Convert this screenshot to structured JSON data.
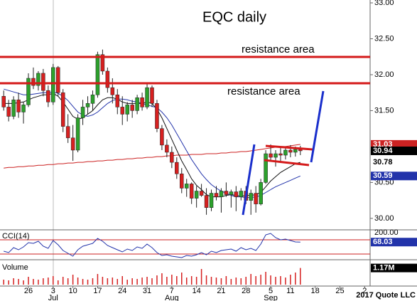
{
  "chart_data": {
    "type": "candlestick",
    "title": "EQC daily",
    "annotations": [
      "resistance area",
      "resistance area"
    ],
    "copyright": "2017 Quote LLC",
    "categories": [
      null,
      null,
      null,
      null,
      null,
      "26",
      null,
      null,
      null,
      null,
      "3",
      null,
      null,
      null,
      "10",
      null,
      null,
      null,
      null,
      "17",
      null,
      null,
      null,
      null,
      "24",
      null,
      null,
      null,
      null,
      "31",
      null,
      null,
      null,
      null,
      "7",
      null,
      null,
      null,
      null,
      "14",
      null,
      null,
      null,
      null,
      "21",
      null,
      null,
      null,
      null,
      "28",
      null,
      null,
      null,
      null,
      "5",
      null,
      null,
      null,
      "11",
      null,
      null,
      null,
      null,
      "18",
      null,
      null,
      null,
      null,
      "25",
      null,
      null,
      null,
      null,
      "2"
    ],
    "months": [
      null,
      null,
      null,
      null,
      null,
      null,
      null,
      null,
      null,
      null,
      "Jul",
      null,
      null,
      null,
      null,
      null,
      null,
      null,
      null,
      null,
      null,
      null,
      null,
      null,
      null,
      null,
      null,
      null,
      null,
      null,
      null,
      null,
      null,
      null,
      "Aug",
      null,
      null,
      null,
      null,
      null,
      null,
      null,
      null,
      null,
      null,
      null,
      null,
      null,
      null,
      null,
      null,
      null,
      null,
      null,
      "Sep",
      null,
      null,
      null,
      null,
      null,
      null,
      null,
      null,
      null,
      null,
      null,
      null,
      null,
      null,
      null,
      null,
      null,
      null,
      null
    ],
    "up_color": "#2ca02c",
    "down_color": "#d62020",
    "open": [
      31.7,
      31.55,
      31.42,
      31.65,
      31.48,
      31.58,
      31.95,
      31.85,
      32.02,
      31.78,
      31.62,
      32.1,
      31.75,
      31.28,
      31.12,
      30.95,
      31.4,
      31.55,
      31.6,
      31.72,
      32.28,
      32.05,
      31.82,
      31.72,
      31.55,
      31.45,
      31.58,
      31.5,
      31.68,
      31.55,
      31.82,
      31.6,
      31.25,
      31.02,
      30.92,
      30.78,
      30.62,
      30.42,
      30.48,
      30.28,
      30.38,
      30.32,
      30.15,
      30.35,
      30.3,
      30.38,
      30.33,
      30.37,
      30.3,
      30.38,
      30.25,
      30.35,
      30.2,
      30.5,
      30.9,
      30.85,
      30.9,
      30.88,
      30.95,
      30.92,
      30.96,
      null,
      null,
      null,
      null,
      null,
      null,
      null,
      null,
      null,
      null,
      null,
      null,
      null
    ],
    "high": [
      31.78,
      31.65,
      31.7,
      31.75,
      31.62,
      32.02,
      32.1,
      32.05,
      32.08,
      31.85,
      32.15,
      32.12,
      31.8,
      31.45,
      31.3,
      31.45,
      31.65,
      31.7,
      31.78,
      32.32,
      32.35,
      32.1,
      31.95,
      31.8,
      31.7,
      31.62,
      31.65,
      31.72,
      31.75,
      31.88,
      31.85,
      31.65,
      31.3,
      31.1,
      31.0,
      30.85,
      30.7,
      30.55,
      30.5,
      30.45,
      30.48,
      30.42,
      30.4,
      30.45,
      30.42,
      30.5,
      30.4,
      30.45,
      30.42,
      30.45,
      30.4,
      30.45,
      30.55,
      30.95,
      31.03,
      30.95,
      30.98,
      31.0,
      31.02,
      31.0,
      31.01,
      null,
      null,
      null,
      null,
      null,
      null,
      null,
      null,
      null,
      null,
      null,
      null,
      null
    ],
    "low": [
      31.5,
      31.35,
      31.38,
      31.4,
      31.32,
      31.55,
      31.8,
      31.78,
      31.7,
      31.55,
      31.58,
      31.7,
      31.2,
      31.05,
      30.8,
      30.92,
      31.3,
      31.45,
      31.5,
      31.68,
      32.0,
      31.75,
      31.6,
      31.45,
      31.3,
      31.35,
      31.4,
      31.45,
      31.5,
      31.52,
      31.55,
      31.2,
      30.95,
      30.85,
      30.7,
      30.55,
      30.35,
      30.3,
      30.2,
      30.15,
      30.3,
      30.05,
      30.1,
      30.25,
      30.08,
      30.3,
      30.15,
      30.1,
      30.25,
      30.2,
      30.05,
      30.08,
      30.18,
      30.48,
      30.8,
      30.72,
      30.8,
      30.82,
      30.85,
      30.86,
      30.88,
      null,
      null,
      null,
      null,
      null,
      null,
      null,
      null,
      null,
      null,
      null,
      null,
      null
    ],
    "close": [
      31.55,
      31.42,
      31.65,
      31.48,
      31.58,
      31.95,
      31.85,
      32.02,
      31.78,
      31.62,
      32.1,
      31.75,
      31.28,
      31.12,
      30.95,
      31.4,
      31.55,
      31.6,
      31.72,
      32.28,
      32.05,
      31.82,
      31.72,
      31.55,
      31.45,
      31.58,
      31.5,
      31.68,
      31.55,
      31.82,
      31.6,
      31.25,
      31.02,
      30.92,
      30.78,
      30.62,
      30.42,
      30.48,
      30.28,
      30.38,
      30.32,
      30.15,
      30.35,
      30.3,
      30.38,
      30.33,
      30.37,
      30.3,
      30.38,
      30.25,
      30.35,
      30.2,
      30.5,
      30.9,
      30.85,
      30.9,
      30.88,
      30.95,
      30.92,
      30.96,
      30.94,
      null,
      null,
      null,
      null,
      null,
      null,
      null,
      null,
      null,
      null,
      null,
      null,
      null
    ],
    "overlays": [
      {
        "color": "#cc2222",
        "values": [
          30.7,
          30.71,
          30.71,
          30.72,
          30.72,
          30.73,
          30.73,
          30.74,
          30.74,
          30.75,
          30.75,
          30.76,
          30.76,
          30.77,
          30.77,
          30.78,
          30.78,
          30.79,
          30.79,
          30.8,
          30.8,
          30.81,
          30.81,
          30.82,
          30.82,
          30.83,
          30.83,
          30.84,
          30.84,
          30.85,
          30.85,
          30.86,
          30.86,
          30.87,
          30.87,
          30.88,
          30.88,
          30.88,
          30.89,
          30.89,
          30.89,
          30.9,
          30.9,
          30.9,
          30.91,
          30.91,
          30.92,
          30.92,
          30.93,
          30.93,
          30.94,
          30.95,
          30.96,
          30.97,
          30.98,
          30.99,
          31.0,
          31.0,
          31.01,
          31.02,
          31.03,
          null,
          null,
          null,
          null,
          null,
          null,
          null,
          null,
          null,
          null,
          null,
          null,
          null
        ]
      },
      {
        "color": "#111111",
        "values": [
          31.6,
          31.6,
          31.6,
          31.61,
          31.62,
          31.65,
          31.68,
          31.7,
          31.72,
          31.72,
          31.74,
          31.7,
          31.62,
          31.52,
          31.42,
          31.38,
          31.4,
          31.45,
          31.5,
          31.58,
          31.65,
          31.68,
          31.68,
          31.66,
          31.62,
          31.6,
          31.6,
          31.6,
          31.6,
          31.62,
          31.6,
          31.52,
          31.4,
          31.25,
          31.1,
          30.95,
          30.8,
          30.68,
          30.55,
          30.46,
          30.4,
          30.33,
          30.3,
          30.3,
          30.3,
          30.32,
          30.33,
          30.32,
          30.31,
          30.32,
          30.32,
          30.33,
          30.36,
          30.44,
          30.52,
          30.58,
          30.64,
          30.68,
          30.72,
          30.76,
          30.78,
          null,
          null,
          null,
          null,
          null,
          null,
          null,
          null,
          null,
          null,
          null,
          null,
          null
        ]
      },
      {
        "color": "#2233aa",
        "values": [
          31.8,
          31.78,
          31.76,
          31.74,
          31.72,
          31.72,
          31.73,
          31.74,
          31.75,
          31.75,
          31.76,
          31.74,
          31.7,
          31.64,
          31.56,
          31.48,
          31.44,
          31.42,
          31.44,
          31.48,
          31.54,
          31.6,
          31.64,
          31.66,
          31.66,
          31.65,
          31.63,
          31.62,
          31.6,
          31.58,
          31.56,
          31.54,
          31.48,
          31.4,
          31.3,
          31.18,
          31.06,
          30.94,
          30.82,
          30.72,
          30.62,
          30.54,
          30.47,
          30.42,
          30.38,
          30.35,
          30.32,
          30.3,
          30.3,
          30.29,
          30.29,
          30.3,
          30.32,
          30.36,
          30.4,
          30.44,
          30.47,
          30.5,
          30.53,
          30.56,
          30.59,
          null,
          null,
          null,
          null,
          null,
          null,
          null,
          null,
          null,
          null,
          null,
          null,
          null
        ]
      }
    ],
    "ylim": [
      29.85,
      33.04
    ],
    "yticks": [
      {
        "value": 33,
        "label": "33.00"
      },
      {
        "value": 32.5,
        "label": "32.50"
      },
      {
        "value": 32,
        "label": "32.00"
      },
      {
        "value": 31.5,
        "label": "31.50"
      },
      {
        "value": 30.5,
        "label": "30.50"
      },
      {
        "value": 30,
        "label": "30.00"
      }
    ],
    "cci": {
      "label": "CCI(14)",
      "color": "#2233aa",
      "level_color": "#cc2222",
      "ylim": [
        -170,
        210
      ],
      "yticks": [
        {
          "value": 200,
          "label": "200.00"
        }
      ],
      "levels": [
        100,
        -100
      ],
      "values": [
        -60,
        -80,
        -10,
        -40,
        0,
        60,
        50,
        80,
        10,
        -20,
        90,
        30,
        -50,
        -90,
        -130,
        -40,
        10,
        30,
        50,
        120,
        80,
        20,
        -10,
        -40,
        -70,
        -30,
        -50,
        0,
        -20,
        40,
        -10,
        -80,
        -120,
        -110,
        -130,
        -140,
        -150,
        -120,
        -130,
        -110,
        -80,
        -110,
        -60,
        -80,
        -50,
        -40,
        -30,
        -60,
        -10,
        -40,
        -20,
        -50,
        40,
        170,
        190,
        130,
        100,
        110,
        90,
        70,
        68.03,
        null,
        null,
        null,
        null,
        null,
        null,
        null,
        null,
        null,
        null,
        null,
        null,
        null
      ]
    },
    "volume": {
      "label": "Volume",
      "color": "#d62020",
      "ylim": [
        0,
        1.6
      ],
      "tag": "1.17M",
      "values": [
        0.35,
        0.3,
        0.45,
        0.4,
        0.3,
        0.55,
        0.4,
        0.35,
        0.45,
        0.5,
        0.6,
        0.3,
        0.55,
        0.45,
        0.7,
        0.5,
        0.4,
        0.35,
        0.45,
        0.75,
        0.55,
        0.45,
        0.5,
        0.4,
        0.6,
        0.35,
        0.45,
        0.4,
        0.5,
        0.55,
        0.45,
        0.65,
        0.8,
        0.55,
        0.7,
        0.6,
        0.85,
        0.5,
        0.6,
        0.55,
        1.1,
        0.65,
        0.55,
        0.5,
        0.45,
        0.6,
        0.4,
        0.5,
        0.45,
        0.55,
        0.75,
        0.6,
        0.7,
        0.9,
        0.65,
        0.55,
        0.6,
        0.5,
        0.7,
        0.85,
        1.17,
        null,
        null,
        null,
        null,
        null,
        null,
        null,
        null,
        null,
        null,
        null,
        null,
        null
      ]
    }
  }
}
